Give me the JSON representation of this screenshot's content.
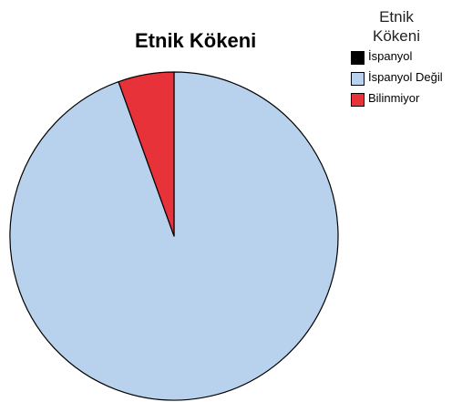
{
  "chart_data": {
    "type": "pie",
    "title": "Etnik Kökeni",
    "legend": {
      "title_lines": [
        "Etnik",
        "Kökeni"
      ],
      "position": "top-right"
    },
    "categories": [
      "İspanyol",
      "İspanyol Değil",
      "Bilinmiyor"
    ],
    "values": [
      0.0,
      94.5,
      5.5
    ],
    "colors": [
      "#000000",
      "#b8d2ee",
      "#e8323a"
    ]
  }
}
